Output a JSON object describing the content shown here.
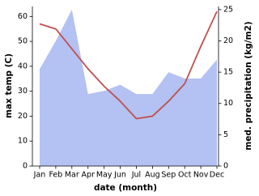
{
  "chart_data": {
    "type": "line-area",
    "x_label": "date (month)",
    "y_label": "max temp (C)",
    "y2_label": "med. precipitation (kg/m2)",
    "categories": [
      "Jan",
      "Feb",
      "Mar",
      "Apr",
      "May",
      "Jun",
      "Jul",
      "Aug",
      "Sep",
      "Oct",
      "Nov",
      "Dec"
    ],
    "series": [
      {
        "color": "#c0504d",
        "values": [
          57,
          55,
          47,
          39,
          32,
          26,
          19,
          20,
          26,
          33,
          48,
          62
        ]
      },
      {
        "color": "#b3c1f3",
        "axis": "y2",
        "values": [
          15.5,
          20,
          25,
          11.5,
          12,
          13,
          11.5,
          11.5,
          15,
          14,
          14,
          17
        ]
      }
    ],
    "ylim": [
      0,
      64
    ],
    "yticks": [
      0,
      10,
      20,
      30,
      40,
      50,
      60
    ],
    "y2lim": [
      0,
      25.5
    ],
    "y2ticks": [
      0,
      5,
      10,
      15,
      20,
      25
    ]
  }
}
